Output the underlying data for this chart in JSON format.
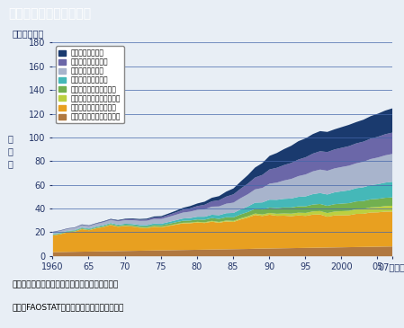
{
  "title": "世界の漁業生産量の推移",
  "ylabel": "生\n産\n量",
  "yunits": "（百万トン）",
  "note1": "注：水産植物、水産哺乳類、雑多な水産物を除く",
  "note2": "資料：FAOSTATデータベースより環境省作成",
  "years": [
    1960,
    1961,
    1962,
    1963,
    1964,
    1965,
    1966,
    1967,
    1968,
    1969,
    1970,
    1971,
    1972,
    1973,
    1974,
    1975,
    1976,
    1977,
    1978,
    1979,
    1980,
    1981,
    1982,
    1983,
    1984,
    1985,
    1986,
    1987,
    1988,
    1989,
    1990,
    1991,
    1992,
    1993,
    1994,
    1995,
    1996,
    1997,
    1998,
    1999,
    2000,
    2001,
    2002,
    2003,
    2004,
    2005,
    2006,
    2007
  ],
  "background_color": "#e8eef5",
  "plot_bg_color": "#e8eef5",
  "title_color": "#2255aa",
  "grid_color": "#4466aa",
  "ylim": [
    0,
    180
  ],
  "yticks": [
    0,
    20,
    40,
    60,
    80,
    100,
    120,
    140,
    160,
    180
  ],
  "xticks": [
    1960,
    1965,
    1970,
    1975,
    1980,
    1985,
    1990,
    1995,
    2000,
    2005,
    2007
  ],
  "xtick_labels": [
    "1960",
    "65",
    "70",
    "75",
    "80",
    "85",
    "90",
    "95",
    "2000",
    "05",
    "07（年）"
  ],
  "legend_labels": [
    "海面養殖（中国）",
    "内水面養殖（中国）",
    "海面漁業（中国）",
    "内水面漁業（中国）",
    "海面養殖（中国を除く）",
    "内水面養殖（中国を除く）",
    "海面漁業（中国を除く）",
    "内水面漁業（中国を除く）"
  ],
  "colors": [
    "#1a3a6e",
    "#6b67a8",
    "#a8b4cc",
    "#45b8b8",
    "#72b050",
    "#bcd040",
    "#e8a020",
    "#b07840"
  ],
  "series": {
    "inland_fish_excl": [
      3.5,
      3.6,
      3.7,
      3.8,
      3.9,
      4.0,
      4.1,
      4.2,
      4.3,
      4.4,
      4.5,
      4.6,
      4.7,
      4.8,
      4.9,
      5.0,
      5.1,
      5.2,
      5.3,
      5.4,
      5.5,
      5.6,
      5.7,
      5.8,
      5.9,
      6.0,
      6.1,
      6.2,
      6.4,
      6.5,
      6.6,
      6.7,
      6.8,
      6.9,
      7.0,
      7.1,
      7.2,
      7.3,
      7.4,
      7.5,
      7.6,
      7.7,
      7.8,
      7.9,
      8.0,
      8.1,
      8.2,
      8.3
    ],
    "marine_fish_excl": [
      14.0,
      15.0,
      16.5,
      17.0,
      19.0,
      18.0,
      19.5,
      20.5,
      22.0,
      20.5,
      21.0,
      20.5,
      19.5,
      19.0,
      20.0,
      19.5,
      20.5,
      21.5,
      22.5,
      22.5,
      23.0,
      22.5,
      23.5,
      22.5,
      23.5,
      23.0,
      25.0,
      26.5,
      28.5,
      27.5,
      28.5,
      27.5,
      27.5,
      27.0,
      27.5,
      27.0,
      28.0,
      28.0,
      26.0,
      27.0,
      27.0,
      27.0,
      28.0,
      28.0,
      29.0,
      29.0,
      29.5,
      29.5
    ],
    "inland_aqua_excl": [
      0.2,
      0.2,
      0.2,
      0.2,
      0.2,
      0.2,
      0.2,
      0.2,
      0.3,
      0.3,
      0.3,
      0.3,
      0.3,
      0.4,
      0.4,
      0.4,
      0.4,
      0.5,
      0.5,
      0.5,
      0.6,
      0.6,
      0.7,
      0.7,
      0.8,
      0.9,
      1.0,
      1.1,
      1.2,
      1.3,
      1.5,
      1.7,
      1.9,
      2.1,
      2.3,
      2.5,
      2.7,
      2.9,
      3.1,
      3.3,
      3.5,
      3.7,
      3.9,
      4.1,
      4.3,
      4.5,
      4.7,
      4.9
    ],
    "marine_aqua_excl": [
      0.5,
      0.5,
      0.5,
      0.6,
      0.6,
      0.6,
      0.7,
      0.7,
      0.8,
      0.8,
      0.9,
      1.0,
      1.0,
      1.1,
      1.2,
      1.3,
      1.4,
      1.5,
      1.7,
      1.8,
      2.0,
      2.2,
      2.4,
      2.6,
      2.8,
      3.0,
      3.3,
      3.6,
      3.9,
      4.2,
      4.5,
      4.8,
      5.0,
      5.2,
      5.4,
      5.6,
      5.8,
      6.0,
      6.1,
      6.2,
      6.4,
      6.5,
      6.6,
      6.7,
      6.8,
      6.9,
      7.0,
      7.0
    ],
    "inland_fish_china": [
      0.5,
      0.5,
      0.5,
      0.5,
      0.6,
      0.6,
      0.6,
      0.7,
      0.7,
      0.7,
      0.8,
      0.9,
      1.0,
      1.1,
      1.2,
      1.3,
      1.5,
      1.7,
      1.9,
      2.1,
      2.3,
      2.5,
      2.8,
      3.1,
      3.4,
      3.7,
      4.2,
      4.7,
      5.3,
      6.0,
      6.7,
      7.0,
      7.3,
      7.6,
      8.0,
      8.4,
      8.8,
      9.2,
      9.6,
      10.0,
      10.4,
      10.8,
      11.2,
      11.6,
      12.0,
      12.4,
      12.8,
      13.2
    ],
    "marine_fish_china": [
      1.5,
      1.6,
      1.7,
      1.8,
      1.9,
      2.0,
      2.2,
      2.4,
      2.6,
      2.8,
      3.0,
      3.2,
      3.4,
      3.6,
      3.8,
      4.0,
      4.3,
      4.6,
      5.0,
      5.4,
      5.8,
      6.3,
      6.8,
      7.4,
      8.0,
      8.7,
      9.5,
      10.3,
      11.2,
      12.2,
      13.5,
      14.5,
      15.5,
      16.5,
      17.5,
      18.5,
      19.2,
      19.8,
      20.0,
      20.2,
      20.5,
      20.8,
      21.0,
      21.5,
      22.0,
      22.5,
      23.0,
      23.5
    ],
    "inland_aqua_china": [
      0.3,
      0.3,
      0.3,
      0.3,
      0.4,
      0.4,
      0.4,
      0.5,
      0.5,
      0.6,
      0.7,
      0.8,
      0.9,
      1.0,
      1.2,
      1.4,
      1.7,
      2.0,
      2.4,
      2.8,
      3.2,
      3.8,
      4.5,
      5.2,
      6.0,
      7.0,
      8.0,
      9.0,
      10.0,
      11.0,
      12.0,
      12.5,
      13.0,
      13.5,
      14.0,
      14.5,
      15.0,
      15.5,
      15.8,
      16.0,
      16.2,
      16.5,
      16.8,
      17.0,
      17.2,
      17.5,
      17.8,
      18.0
    ],
    "marine_aqua_china": [
      0.2,
      0.2,
      0.2,
      0.2,
      0.3,
      0.3,
      0.3,
      0.4,
      0.4,
      0.5,
      0.5,
      0.6,
      0.7,
      0.8,
      0.9,
      1.0,
      1.2,
      1.4,
      1.6,
      1.9,
      2.2,
      2.6,
      3.0,
      3.5,
      4.2,
      5.0,
      6.0,
      7.2,
      8.5,
      10.0,
      11.5,
      12.5,
      13.5,
      14.5,
      15.5,
      16.0,
      16.5,
      17.0,
      17.0,
      17.0,
      17.5,
      18.0,
      18.0,
      18.5,
      19.0,
      19.5,
      20.0,
      20.5
    ]
  }
}
